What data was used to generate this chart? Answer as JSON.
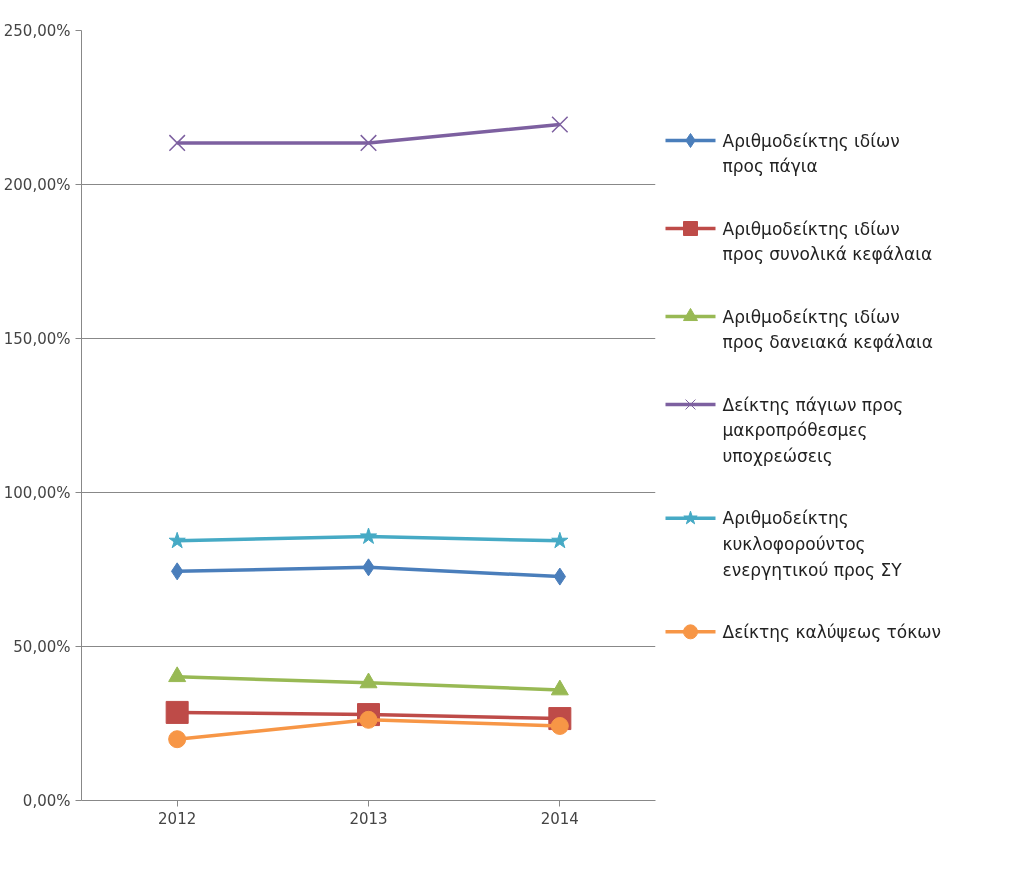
{
  "chart_data": {
    "type": "line",
    "categories": [
      "2012",
      "2013",
      "2014"
    ],
    "ylim": [
      0,
      250
    ],
    "yticks": [
      {
        "value": 0,
        "label": "0,00%"
      },
      {
        "value": 50,
        "label": "50,00%"
      },
      {
        "value": 100,
        "label": "100,00%"
      },
      {
        "value": 150,
        "label": "150,00%"
      },
      {
        "value": 200,
        "label": "200,00%"
      },
      {
        "value": 250,
        "label": "250,00%"
      }
    ],
    "grid": "y",
    "legend": "right",
    "series": [
      {
        "name": "Αριθμοδείκτης ιδίων προς πάγια",
        "color": "#4a7ebb",
        "marker": "diamond",
        "values": [
          74.4,
          75.7,
          72.7
        ]
      },
      {
        "name": "Αριθμοδείκτης ιδίων προς συνολικά κεφάλαια",
        "color": "#be4b48",
        "marker": "square",
        "values": [
          28.6,
          27.9,
          26.6
        ]
      },
      {
        "name": "Αριθμοδείκτης ιδίων προς δανειακά κεφάλαια",
        "color": "#98b954",
        "marker": "triangle",
        "values": [
          40.2,
          38.2,
          35.9
        ]
      },
      {
        "name": "Δείκτης πάγιων προς μακροπρόθεσμες υποχρεώσεις",
        "color": "#7d60a0",
        "marker": "cross",
        "values": [
          213.5,
          213.5,
          219.5
        ]
      },
      {
        "name": "Αριθμοδείκτης κυκλοφορούντος ενεργητικού προς ΣΥ",
        "color": "#46aac5",
        "marker": "star",
        "values": [
          84.3,
          85.7,
          84.3
        ]
      },
      {
        "name": "Δείκτης καλύψεως τόκων",
        "color": "#f79646",
        "marker": "circle",
        "values": [
          19.9,
          26.2,
          24.2
        ]
      }
    ]
  }
}
